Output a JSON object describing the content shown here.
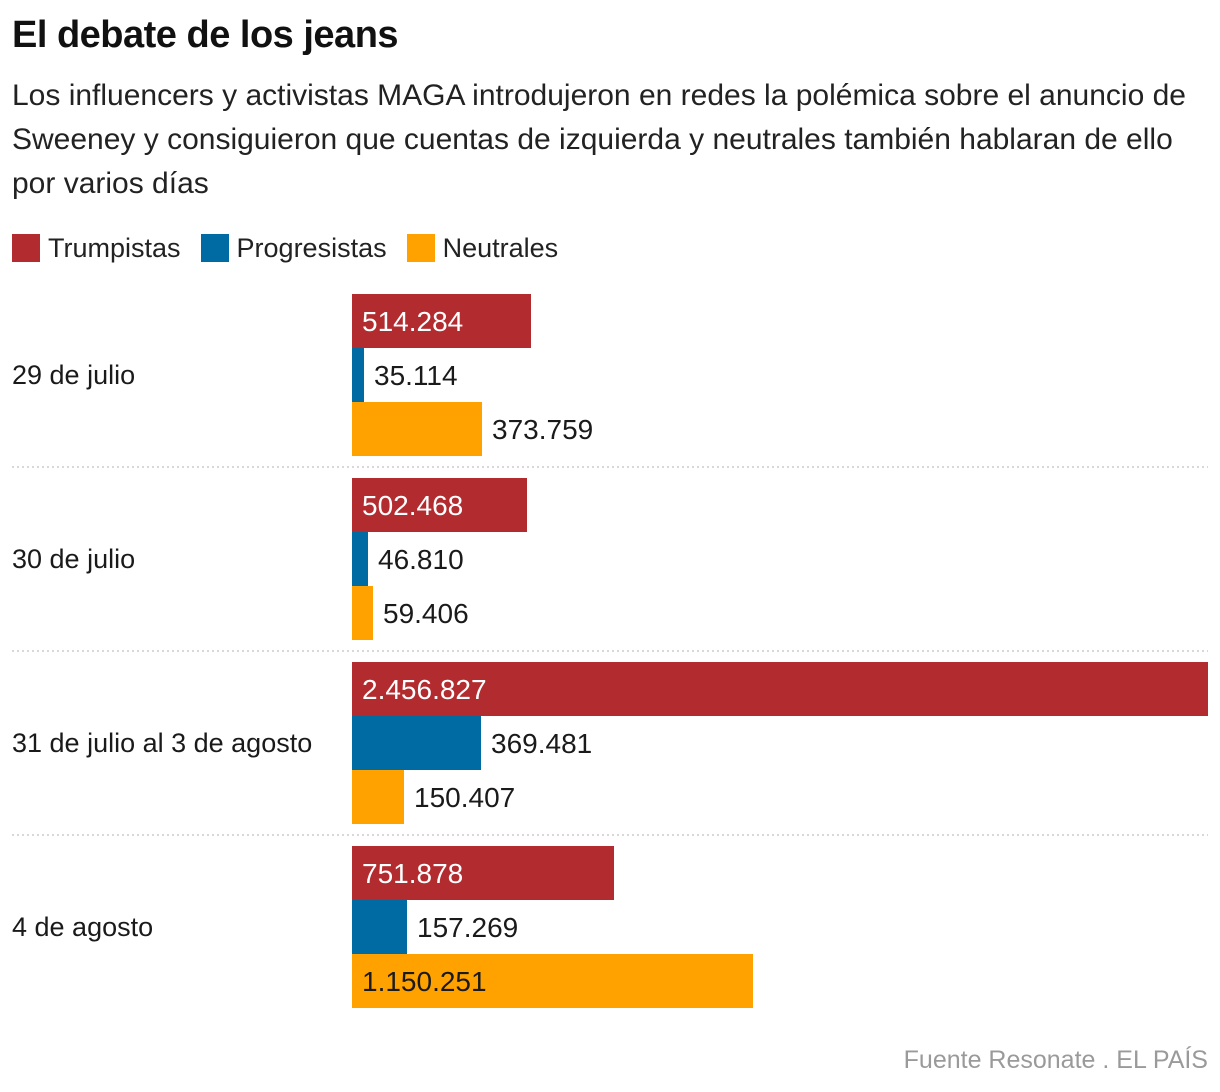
{
  "title": "El debate de los jeans",
  "subtitle": "Los influencers y activistas MAGA introdujeron en redes la polémica sobre el anuncio de Sweeney y consiguieron que cuentas de izquierda y neutrales también hablaran de ello por varios días",
  "source": "Fuente Resonate . EL PAÍS",
  "colors": {
    "trumpistas": "#b22b2f",
    "progresistas": "#006aa3",
    "neutrales": "#ffa200",
    "separator": "#cccccc"
  },
  "chart_data": {
    "type": "bar",
    "orientation": "horizontal",
    "categories": [
      "29 de julio",
      "30 de julio",
      "31 de julio al 3 de agosto",
      "4 de agosto"
    ],
    "series": [
      {
        "name": "Trumpistas",
        "color": "#b22b2f",
        "values": [
          514284,
          502468,
          2456827,
          751878
        ],
        "labels": [
          "514.284",
          "502.468",
          "2.456.827",
          "751.878"
        ]
      },
      {
        "name": "Progresistas",
        "color": "#006aa3",
        "values": [
          35114,
          46810,
          369481,
          157269
        ],
        "labels": [
          "35.114",
          "46.810",
          "369.481",
          "157.269"
        ]
      },
      {
        "name": "Neutrales",
        "color": "#ffa200",
        "values": [
          373759,
          59406,
          150407,
          1150251
        ],
        "labels": [
          "373.759",
          "59.406",
          "150.407",
          "1.150.251"
        ]
      }
    ],
    "xlim": [
      0,
      2456827
    ],
    "legend_position": "top-left",
    "grid": false
  }
}
